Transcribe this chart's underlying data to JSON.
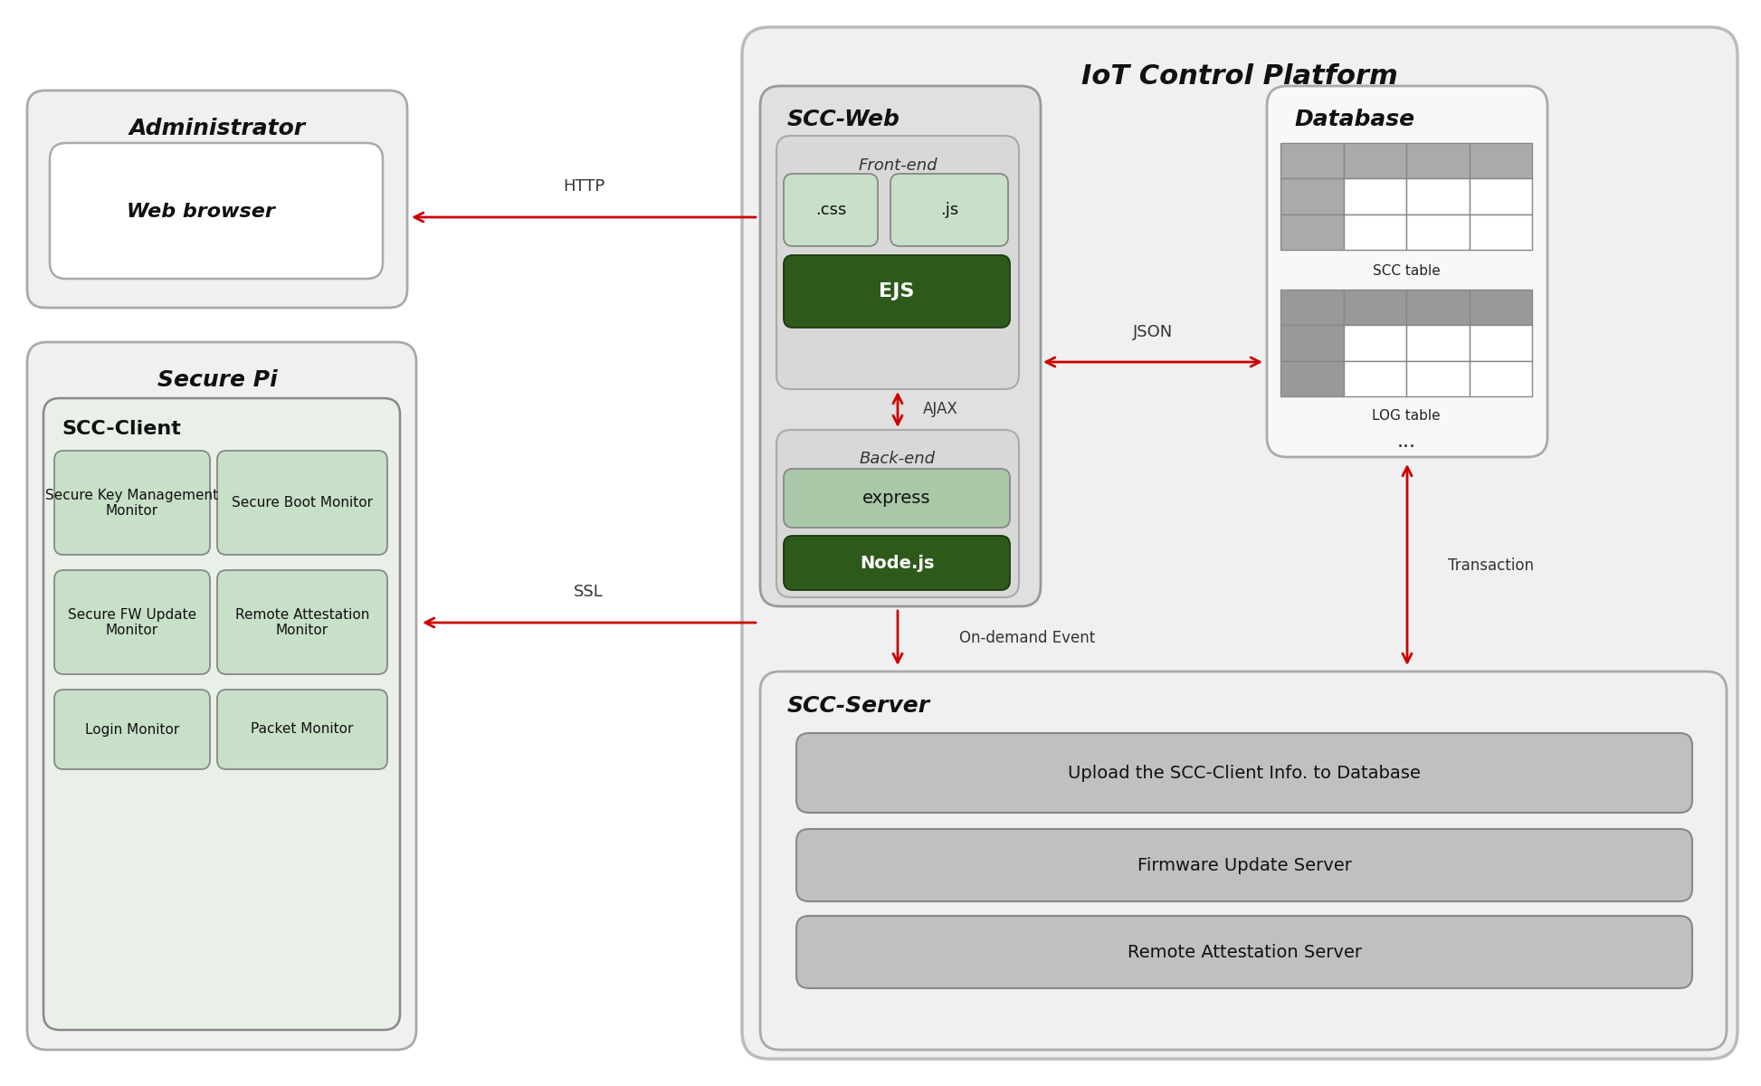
{
  "bg_color": "#ffffff",
  "iot_title": "IoT Control Platform",
  "admin_label": "Administrator",
  "webbrowser_label": "Web browser",
  "sccweb_label": "SCC-Web",
  "frontend_label": "Front-end",
  "css_label": ".css",
  "js_label": ".js",
  "ejs_label": "EJS",
  "backend_label": "Back-end",
  "express_label": "express",
  "nodejs_label": "Node.js",
  "database_label": "Database",
  "scctable_label": "SCC table",
  "logtable_label": "LOG table",
  "dots_label": "...",
  "sccserver_label": "SCC-Server",
  "upload_label": "Upload the SCC-Client Info. to Database",
  "firmware_label": "Firmware Update Server",
  "remote_label": "Remote Attestation Server",
  "securepi_label": "Secure Pi",
  "sccclient_label": "SCC-Client",
  "skm_label": "Secure Key Management\nMonitor",
  "sboot_label": "Secure Boot Monitor",
  "sfwupdate_label": "Secure FW Update\nMonitor",
  "rattest_label": "Remote Attestation\nMonitor",
  "login_label": "Login Monitor",
  "packet_label": "Packet Monitor",
  "http_label": "HTTP",
  "json_label": "JSON",
  "ajax_label": "AJAX",
  "ondemand_label": "On-demand Event",
  "transaction_label": "Transaction",
  "ssl_label": "SSL",
  "arrow_color": "#cc0000",
  "dark_green": "#2d5a1b",
  "light_green": "#c8dfc8",
  "mid_green": "#a8c8a8",
  "gray_box": "#c0c0c0",
  "gray_light": "#d8d8d8",
  "gray_bg": "#eeeeee",
  "white": "#ffffff",
  "admin_bg": "#f0f0f0",
  "iot_bg": "#f0f0f0",
  "sccweb_bg": "#e0e0e0",
  "sccserver_bg": "#f0f0f0",
  "securepi_bg": "#f0f0f0",
  "sccclient_bg": "#e8f0e8",
  "table_header": "#aaaaaa",
  "table_header2": "#999999"
}
